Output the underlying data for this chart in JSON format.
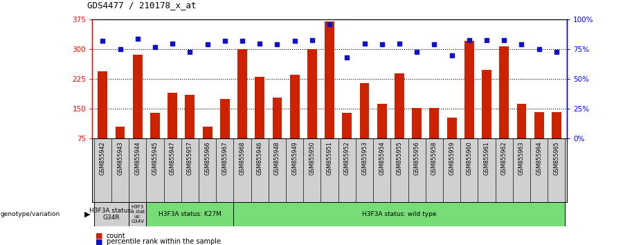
{
  "title": "GDS4477 / 210178_x_at",
  "samples": [
    "GSM855942",
    "GSM855943",
    "GSM855944",
    "GSM855945",
    "GSM855947",
    "GSM855957",
    "GSM855966",
    "GSM855967",
    "GSM855968",
    "GSM855946",
    "GSM855948",
    "GSM855949",
    "GSM855950",
    "GSM855951",
    "GSM855952",
    "GSM855953",
    "GSM855954",
    "GSM855955",
    "GSM855956",
    "GSM855958",
    "GSM855959",
    "GSM855960",
    "GSM855961",
    "GSM855962",
    "GSM855963",
    "GSM855964",
    "GSM855965"
  ],
  "counts": [
    245,
    105,
    287,
    140,
    190,
    185,
    105,
    175,
    300,
    230,
    178,
    235,
    300,
    370,
    140,
    215,
    163,
    240,
    152,
    152,
    128,
    322,
    248,
    308,
    163,
    142,
    142
  ],
  "percentiles": [
    82,
    75,
    84,
    77,
    80,
    73,
    79,
    82,
    82,
    80,
    79,
    82,
    83,
    96,
    68,
    80,
    79,
    80,
    73,
    79,
    70,
    83,
    83,
    83,
    79,
    75,
    73
  ],
  "group_labels": [
    "H3F3A status:\nG34R",
    "H3F3\nA stat\nus:\nG34V",
    "H3F3A status: K27M",
    "H3F3A status: wild type"
  ],
  "group_starts": [
    0,
    2,
    3,
    8
  ],
  "group_ends": [
    2,
    3,
    8,
    27
  ],
  "group_colors": [
    "#d0d0d0",
    "#d0d0d0",
    "#77dd77",
    "#77dd77"
  ],
  "bar_color": "#cc2200",
  "dot_color": "#1111cc",
  "ylim_left": [
    75,
    375
  ],
  "ylim_right": [
    0,
    100
  ],
  "yticks_left": [
    75,
    150,
    225,
    300,
    375
  ],
  "yticks_right": [
    0,
    25,
    50,
    75,
    100
  ],
  "ytick_labels_left": [
    "75",
    "150",
    "225",
    "300",
    "375"
  ],
  "ytick_labels_right": [
    "0%",
    "25%",
    "50%",
    "75%",
    "100%"
  ],
  "hlines": [
    150,
    225,
    300
  ],
  "background_color": "#ffffff",
  "legend_count_label": "count",
  "legend_pct_label": "percentile rank within the sample",
  "genotype_label": "genotype/variation",
  "xlabel_bg": "#d0d0d0"
}
